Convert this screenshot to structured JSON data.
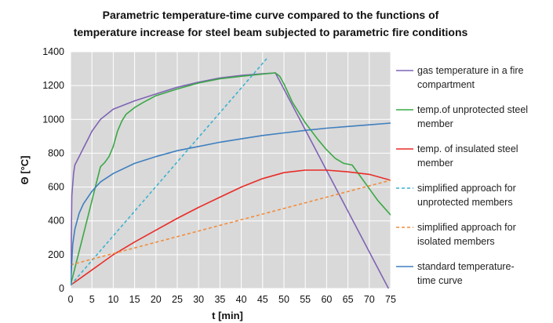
{
  "chart_data": {
    "type": "line",
    "title": [
      "Parametric temperature-time curve compared to the functions of",
      "temperature increase for steel beam subjected to parametric fire conditions"
    ],
    "xlabel": "t [min]",
    "ylabel": "Θ [°C]",
    "xlim": [
      0,
      75
    ],
    "ylim": [
      0,
      1400
    ],
    "xticks": [
      0,
      5,
      10,
      15,
      20,
      25,
      30,
      35,
      40,
      45,
      50,
      55,
      60,
      65,
      70,
      75
    ],
    "yticks": [
      0,
      200,
      400,
      600,
      800,
      1000,
      1200,
      1400
    ],
    "grid": true,
    "legend": "right",
    "series": [
      {
        "name": [
          "gas temperature in a fire",
          "compartment"
        ],
        "color": "#7f63b5",
        "dash": "solid",
        "x": [
          0,
          0.3,
          0.7,
          1,
          2,
          3,
          4,
          5,
          7,
          10,
          15,
          20,
          25,
          30,
          35,
          40,
          45,
          48,
          74.5
        ],
        "y": [
          20,
          550,
          680,
          730,
          780,
          830,
          880,
          930,
          1000,
          1060,
          1110,
          1150,
          1190,
          1220,
          1245,
          1260,
          1270,
          1275,
          0
        ]
      },
      {
        "name": [
          "temp.of unprotected steel",
          "member"
        ],
        "color": "#3aa845",
        "dash": "solid",
        "x": [
          0,
          2,
          4,
          6,
          7,
          8,
          9,
          10,
          11,
          12,
          13,
          14,
          15,
          17,
          20,
          25,
          30,
          35,
          40,
          45,
          48,
          49,
          50,
          52,
          55,
          58,
          60,
          62,
          64,
          66,
          68,
          70,
          72,
          75
        ],
        "y": [
          20,
          220,
          420,
          620,
          720,
          745,
          780,
          840,
          930,
          990,
          1030,
          1050,
          1070,
          1100,
          1140,
          1180,
          1215,
          1240,
          1255,
          1268,
          1275,
          1255,
          1210,
          1100,
          980,
          880,
          820,
          770,
          740,
          730,
          660,
          590,
          520,
          435
        ]
      },
      {
        "name": [
          "temp. of insulated steel",
          "member"
        ],
        "color": "#e82c28",
        "dash": "solid",
        "x": [
          0,
          5,
          10,
          15,
          20,
          25,
          30,
          35,
          40,
          45,
          50,
          55,
          60,
          65,
          70,
          75
        ],
        "y": [
          20,
          110,
          200,
          275,
          345,
          415,
          480,
          540,
          600,
          650,
          685,
          700,
          700,
          690,
          675,
          640
        ]
      },
      {
        "name": [
          "simplified approach for",
          "unprotected members"
        ],
        "color": "#3ab2cf",
        "dash": "dashed",
        "x": [
          0,
          46
        ],
        "y": [
          20,
          1360
        ]
      },
      {
        "name": [
          "simplified approach for",
          "isolated members"
        ],
        "color": "#f28c3c",
        "dash": "dashed",
        "x": [
          0,
          75
        ],
        "y": [
          140,
          640
        ]
      },
      {
        "name": [
          "standard temperature-",
          "time curve"
        ],
        "color": "#3f7fbf",
        "dash": "solid",
        "x": [
          0,
          0.5,
          1,
          2,
          3,
          5,
          7,
          10,
          15,
          20,
          25,
          30,
          35,
          40,
          45,
          50,
          55,
          60,
          65,
          70,
          75
        ],
        "y": [
          20,
          260,
          350,
          445,
          500,
          575,
          630,
          680,
          740,
          780,
          815,
          840,
          865,
          885,
          905,
          920,
          935,
          948,
          958,
          968,
          978
        ]
      }
    ]
  }
}
